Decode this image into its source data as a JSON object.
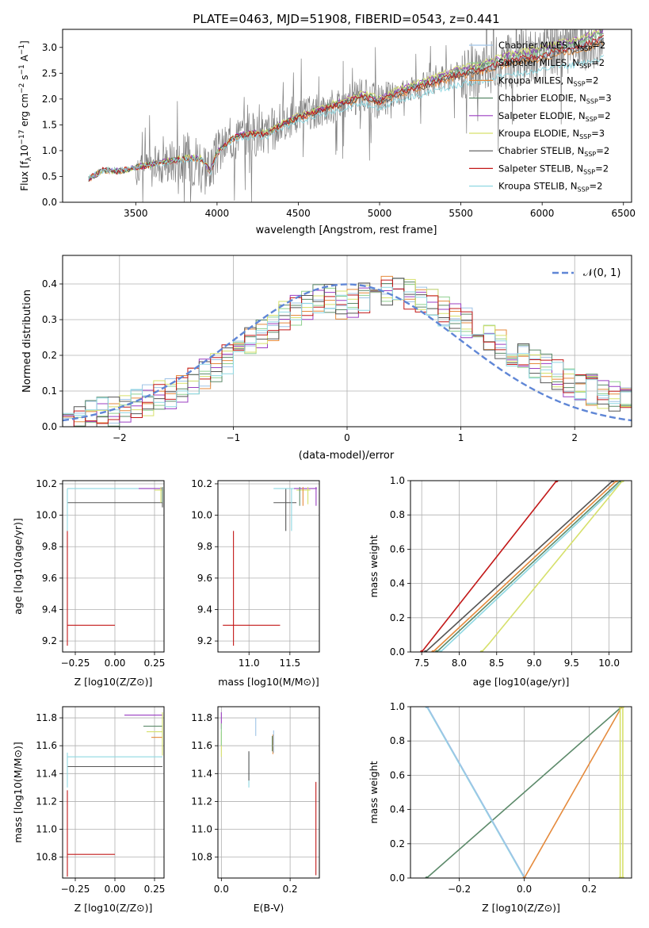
{
  "figure": {
    "title": "PLATE=0463, MJD=51908, FIBERID=0543, z=0.441"
  },
  "colors": {
    "data_gray": "#808080",
    "normal_curve": "#5f86d6",
    "models": [
      "#9fc3e6",
      "#8fd08f",
      "#e58a3c",
      "#5c8a6a",
      "#9b3fc2",
      "#d6e06b",
      "#555555",
      "#c21818",
      "#8fd8e2"
    ]
  },
  "models": [
    {
      "name_prefix": "Chabrier MILES, N",
      "nssp": "2"
    },
    {
      "name_prefix": "Salpeter MILES, N",
      "nssp": "2"
    },
    {
      "name_prefix": "Kroupa MILES, N",
      "nssp": "2"
    },
    {
      "name_prefix": "Chabrier ELODIE, N",
      "nssp": "3"
    },
    {
      "name_prefix": "Salpeter ELODIE, N",
      "nssp": "2"
    },
    {
      "name_prefix": "Kroupa ELODIE, N",
      "nssp": "3"
    },
    {
      "name_prefix": "Chabrier STELIB, N",
      "nssp": "2"
    },
    {
      "name_prefix": "Salpeter STELIB, N",
      "nssp": "2"
    },
    {
      "name_prefix": "Kroupa STELIB, N",
      "nssp": "2"
    }
  ],
  "chart_data": [
    {
      "id": "spectrum",
      "type": "line",
      "xlabel": "wavelength [Angstrom, rest frame]",
      "ylabel": "Flux [f_λ10^-17 erg cm^-2 s^-1 A^-1]",
      "ylabel_parts": {
        "main": "Flux [f",
        "sub1": "λ",
        "mid": "10",
        "sup1": "−17",
        "rest": " erg cm",
        "sup2": "−2",
        "rest2": " s",
        "sup3": "−1",
        "rest3": " A",
        "sup4": "−1",
        "end": "]"
      },
      "xlim": [
        3050,
        6550
      ],
      "ylim": [
        0,
        3.35
      ],
      "xticks": [
        3500,
        4000,
        4500,
        5000,
        5500,
        6000,
        6500
      ],
      "yticks": [
        0.0,
        0.5,
        1.0,
        1.5,
        2.0,
        2.5,
        3.0
      ],
      "xtick_labels": [
        "3500",
        "4000",
        "4500",
        "5000",
        "5500",
        "6000",
        "6500"
      ],
      "ytick_labels": [
        "0.0",
        "0.5",
        "1.0",
        "1.5",
        "2.0",
        "2.5",
        "3.0"
      ],
      "continuum": [
        [
          3210,
          0.45
        ],
        [
          3300,
          0.62
        ],
        [
          3400,
          0.6
        ],
        [
          3500,
          0.68
        ],
        [
          3600,
          0.73
        ],
        [
          3700,
          0.8
        ],
        [
          3800,
          0.85
        ],
        [
          3900,
          0.85
        ],
        [
          3960,
          0.6
        ],
        [
          4000,
          0.95
        ],
        [
          4100,
          1.25
        ],
        [
          4200,
          1.32
        ],
        [
          4300,
          1.33
        ],
        [
          4400,
          1.5
        ],
        [
          4500,
          1.65
        ],
        [
          4600,
          1.75
        ],
        [
          4700,
          1.85
        ],
        [
          4800,
          1.95
        ],
        [
          4900,
          2.05
        ],
        [
          5000,
          1.95
        ],
        [
          5100,
          2.1
        ],
        [
          5200,
          2.2
        ],
        [
          5300,
          2.3
        ],
        [
          5400,
          2.4
        ],
        [
          5500,
          2.5
        ],
        [
          5600,
          2.55
        ],
        [
          5700,
          2.65
        ],
        [
          5800,
          2.75
        ],
        [
          5900,
          2.8
        ],
        [
          6000,
          2.85
        ],
        [
          6100,
          2.95
        ],
        [
          6200,
          3.0
        ],
        [
          6300,
          3.1
        ],
        [
          6380,
          3.2
        ]
      ],
      "legend": "upper right",
      "grid": false
    },
    {
      "id": "residuals",
      "type": "bar",
      "xlabel": "(data-model)/error",
      "ylabel": "Normed distribution",
      "xlim": [
        -2.5,
        2.5
      ],
      "ylim": [
        0,
        0.48
      ],
      "xticks": [
        -2,
        -1,
        0,
        1,
        2
      ],
      "yticks": [
        0.0,
        0.1,
        0.2,
        0.3,
        0.4
      ],
      "xtick_labels": [
        "−2",
        "−1",
        "0",
        "1",
        "2"
      ],
      "ytick_labels": [
        "0.0",
        "0.1",
        "0.2",
        "0.3",
        "0.4"
      ],
      "bin_width": 0.1,
      "hist_profile": [
        [
          -2.5,
          0.01
        ],
        [
          -2.0,
          0.05
        ],
        [
          -1.5,
          0.1
        ],
        [
          -1.0,
          0.2
        ],
        [
          -0.5,
          0.32
        ],
        [
          -0.2,
          0.36
        ],
        [
          0.0,
          0.34
        ],
        [
          0.3,
          0.38
        ],
        [
          0.6,
          0.37
        ],
        [
          1.0,
          0.3
        ],
        [
          1.5,
          0.2
        ],
        [
          2.0,
          0.12
        ],
        [
          2.5,
          0.07
        ]
      ],
      "legend_label": "𝒩(0, 1)",
      "legend": "upper right",
      "grid": true
    },
    {
      "id": "age-vs-Z",
      "type": "scatter",
      "xlabel": "Z [log10(Z/Z⊙)]",
      "ylabel": "age  [log10(age/yr)]",
      "xlim": [
        -0.33,
        0.31
      ],
      "ylim": [
        9.13,
        10.22
      ],
      "xticks": [
        -0.25,
        0.0,
        0.25
      ],
      "yticks": [
        9.2,
        9.4,
        9.6,
        9.8,
        10.0,
        10.2
      ],
      "xtick_labels": [
        "−0.25",
        "0.00",
        "0.25"
      ],
      "ytick_labels": [
        "9.2",
        "9.4",
        "9.6",
        "9.8",
        "10.0",
        "10.2"
      ],
      "segments": [
        {
          "model": 7,
          "x": [
            -0.3,
            0.0
          ],
          "y": [
            9.3,
            9.3
          ]
        },
        {
          "model": 7,
          "x": [
            -0.3,
            -0.3
          ],
          "y": [
            9.17,
            9.9
          ]
        },
        {
          "model": 6,
          "x": [
            -0.3,
            0.3
          ],
          "y": [
            10.08,
            10.08
          ]
        },
        {
          "model": 6,
          "x": [
            0.3,
            0.3
          ],
          "y": [
            10.05,
            10.17
          ]
        },
        {
          "model": 8,
          "x": [
            -0.3,
            0.3
          ],
          "y": [
            10.17,
            10.17
          ]
        },
        {
          "model": 8,
          "x": [
            -0.3,
            -0.3
          ],
          "y": [
            9.9,
            10.17
          ]
        },
        {
          "model": 4,
          "x": [
            0.15,
            0.3
          ],
          "y": [
            10.17,
            10.17
          ]
        },
        {
          "model": 5,
          "x": [
            0.25,
            0.3
          ],
          "y": [
            10.16,
            10.16
          ]
        },
        {
          "model": 5,
          "x": [
            0.29,
            0.29
          ],
          "y": [
            10.08,
            10.18
          ]
        },
        {
          "model": 3,
          "x": [
            0.3,
            0.3
          ],
          "y": [
            10.08,
            10.18
          ]
        }
      ],
      "grid": true
    },
    {
      "id": "age-vs-mass",
      "type": "scatter",
      "xlabel": "mass [log10(M/M⊙)]",
      "ylabel": "",
      "xlim": [
        10.62,
        11.86
      ],
      "ylim": [
        9.13,
        10.22
      ],
      "xticks": [
        11.0,
        11.5
      ],
      "yticks": [
        9.2,
        9.4,
        9.6,
        9.8,
        10.0,
        10.2
      ],
      "xtick_labels": [
        "11.0",
        "11.5"
      ],
      "ytick_labels": [
        "9.2",
        "9.4",
        "9.6",
        "9.8",
        "10.0",
        "10.2"
      ],
      "segments": [
        {
          "model": 7,
          "x": [
            10.68,
            11.38
          ],
          "y": [
            9.3,
            9.3
          ]
        },
        {
          "model": 7,
          "x": [
            10.81,
            10.81
          ],
          "y": [
            9.17,
            9.9
          ]
        },
        {
          "model": 6,
          "x": [
            11.3,
            11.58
          ],
          "y": [
            10.08,
            10.08
          ]
        },
        {
          "model": 6,
          "x": [
            11.45,
            11.45
          ],
          "y": [
            9.9,
            10.17
          ]
        },
        {
          "model": 8,
          "x": [
            11.3,
            11.6
          ],
          "y": [
            10.17,
            10.17
          ]
        },
        {
          "model": 8,
          "x": [
            11.52,
            11.52
          ],
          "y": [
            9.9,
            10.17
          ]
        },
        {
          "model": 4,
          "x": [
            11.55,
            11.83
          ],
          "y": [
            10.17,
            10.17
          ]
        },
        {
          "model": 4,
          "x": [
            11.82,
            11.82
          ],
          "y": [
            10.06,
            10.18
          ]
        },
        {
          "model": 5,
          "x": [
            11.58,
            11.75
          ],
          "y": [
            10.16,
            10.16
          ]
        },
        {
          "model": 5,
          "x": [
            11.72,
            11.72
          ],
          "y": [
            10.07,
            10.18
          ]
        },
        {
          "model": 3,
          "x": [
            11.62,
            11.62
          ],
          "y": [
            10.06,
            10.18
          ]
        },
        {
          "model": 2,
          "x": [
            11.66,
            11.66
          ],
          "y": [
            10.06,
            10.18
          ]
        }
      ],
      "grid": true
    },
    {
      "id": "mass-weight-vs-age",
      "type": "line",
      "xlabel": "age  [log10(age/yr)]",
      "ylabel": "mass weight",
      "xlim": [
        7.35,
        10.3
      ],
      "ylim": [
        0,
        1.0
      ],
      "xticks": [
        7.5,
        8.0,
        8.5,
        9.0,
        9.5,
        10.0
      ],
      "yticks": [
        0.0,
        0.2,
        0.4,
        0.6,
        0.8,
        1.0
      ],
      "xtick_labels": [
        "7.5",
        "8.0",
        "8.5",
        "9.0",
        "9.5",
        "10.0"
      ],
      "ytick_labels": [
        "0.0",
        "0.2",
        "0.4",
        "0.6",
        "0.8",
        "1.0"
      ],
      "lines": [
        {
          "model": 7,
          "x": [
            7.5,
            9.3
          ],
          "y": [
            0.0,
            1.0
          ]
        },
        {
          "model": 6,
          "x": [
            7.55,
            10.05
          ],
          "y": [
            0.0,
            1.0
          ]
        },
        {
          "model": 2,
          "x": [
            7.65,
            10.1
          ],
          "y": [
            0.0,
            1.0
          ]
        },
        {
          "model": 3,
          "x": [
            7.7,
            10.15
          ],
          "y": [
            0.0,
            1.0
          ]
        },
        {
          "model": 8,
          "x": [
            7.75,
            10.18
          ],
          "y": [
            0.0,
            1.0
          ]
        },
        {
          "model": 5,
          "x": [
            8.3,
            8.4,
            10.18
          ],
          "y": [
            0.0,
            0.05,
            1.0
          ]
        }
      ],
      "grid": true
    },
    {
      "id": "mass-vs-Z",
      "type": "scatter",
      "xlabel": "Z [log10(Z/Z⊙)]",
      "ylabel": "mass [log10(M/M⊙)]",
      "xlim": [
        -0.33,
        0.31
      ],
      "ylim": [
        10.65,
        11.88
      ],
      "xticks": [
        -0.25,
        0.0,
        0.25
      ],
      "yticks": [
        10.8,
        11.0,
        11.2,
        11.4,
        11.6,
        11.8
      ],
      "xtick_labels": [
        "−0.25",
        "0.00",
        "0.25"
      ],
      "ytick_labels": [
        "10.8",
        "11.0",
        "11.2",
        "11.4",
        "11.6",
        "11.8"
      ],
      "segments": [
        {
          "model": 7,
          "x": [
            -0.3,
            0.0
          ],
          "y": [
            10.82,
            10.82
          ]
        },
        {
          "model": 7,
          "x": [
            -0.3,
            -0.3
          ],
          "y": [
            10.66,
            11.28
          ]
        },
        {
          "model": 6,
          "x": [
            -0.3,
            0.3
          ],
          "y": [
            11.45,
            11.45
          ]
        },
        {
          "model": 8,
          "x": [
            -0.3,
            0.3
          ],
          "y": [
            11.52,
            11.52
          ]
        },
        {
          "model": 8,
          "x": [
            -0.3,
            -0.3
          ],
          "y": [
            11.3,
            11.55
          ]
        },
        {
          "model": 4,
          "x": [
            0.06,
            0.3
          ],
          "y": [
            11.82,
            11.82
          ]
        },
        {
          "model": 3,
          "x": [
            0.18,
            0.3
          ],
          "y": [
            11.74,
            11.74
          ]
        },
        {
          "model": 5,
          "x": [
            0.2,
            0.3
          ],
          "y": [
            11.7,
            11.7
          ]
        },
        {
          "model": 2,
          "x": [
            0.23,
            0.3
          ],
          "y": [
            11.66,
            11.66
          ]
        },
        {
          "model": 5,
          "x": [
            0.3,
            0.3
          ],
          "y": [
            11.53,
            11.84
          ]
        }
      ],
      "grid": true
    },
    {
      "id": "mass-vs-ebv",
      "type": "scatter",
      "xlabel": "E(B-V)",
      "ylabel": "",
      "xlim": [
        -0.01,
        0.285
      ],
      "ylim": [
        10.65,
        11.88
      ],
      "xticks": [
        0.0,
        0.2
      ],
      "yticks": [
        10.8,
        11.0,
        11.2,
        11.4,
        11.6,
        11.8
      ],
      "xtick_labels": [
        "0.0",
        "0.2"
      ],
      "ytick_labels": [
        "10.8",
        "11.0",
        "11.2",
        "11.4",
        "11.6",
        "11.8"
      ],
      "segments": [
        {
          "model": 7,
          "x": [
            0.275,
            0.275
          ],
          "y": [
            10.67,
            11.34
          ]
        },
        {
          "model": 8,
          "x": [
            0.08,
            0.08
          ],
          "y": [
            11.3,
            11.55
          ]
        },
        {
          "model": 6,
          "x": [
            0.08,
            0.08
          ],
          "y": [
            11.35,
            11.56
          ]
        },
        {
          "model": 4,
          "x": [
            0.0,
            0.0
          ],
          "y": [
            11.72,
            11.84
          ]
        },
        {
          "model": 5,
          "x": [
            0.0,
            0.0
          ],
          "y": [
            11.52,
            11.7
          ]
        },
        {
          "model": 1,
          "x": [
            0.0,
            0.0
          ],
          "y": [
            11.6,
            11.76
          ]
        },
        {
          "model": 2,
          "x": [
            0.15,
            0.15
          ],
          "y": [
            11.54,
            11.68
          ]
        },
        {
          "model": 0,
          "x": [
            0.152,
            0.152
          ],
          "y": [
            11.55,
            11.71
          ]
        },
        {
          "model": 3,
          "x": [
            0.148,
            0.148
          ],
          "y": [
            11.56,
            11.67
          ]
        },
        {
          "model": 9,
          "x": [
            0.1,
            0.1
          ],
          "y": [
            11.67,
            11.8
          ]
        }
      ],
      "grid": true
    },
    {
      "id": "mass-weight-vs-Z",
      "type": "line",
      "xlabel": "Z [log10(Z/Z⊙)]",
      "ylabel": "mass weight",
      "xlim": [
        -0.35,
        0.33
      ],
      "ylim": [
        0,
        1.0
      ],
      "xticks": [
        -0.2,
        0.0,
        0.2
      ],
      "yticks": [
        0.0,
        0.2,
        0.4,
        0.6,
        0.8,
        1.0
      ],
      "xtick_labels": [
        "−0.2",
        "0.0",
        "0.2"
      ],
      "ytick_labels": [
        "0.0",
        "0.2",
        "0.4",
        "0.6",
        "0.8",
        "1.0"
      ],
      "lines": [
        {
          "model": 3,
          "x": [
            -0.3,
            0.3
          ],
          "y": [
            0.0,
            1.0
          ]
        },
        {
          "model": 8,
          "x": [
            -0.3,
            0.0
          ],
          "y": [
            1.0,
            0.0
          ]
        },
        {
          "model": 0,
          "x": [
            -0.298,
            0.002
          ],
          "y": [
            1.0,
            0.0
          ]
        },
        {
          "model": 2,
          "x": [
            0.0,
            0.3
          ],
          "y": [
            0.0,
            1.0
          ]
        },
        {
          "model": 5,
          "x": [
            0.295,
            0.295
          ],
          "y": [
            0.0,
            1.0
          ]
        },
        {
          "model": 5,
          "x": [
            0.303,
            0.303
          ],
          "y": [
            0.0,
            1.0
          ]
        }
      ],
      "grid": true
    }
  ]
}
